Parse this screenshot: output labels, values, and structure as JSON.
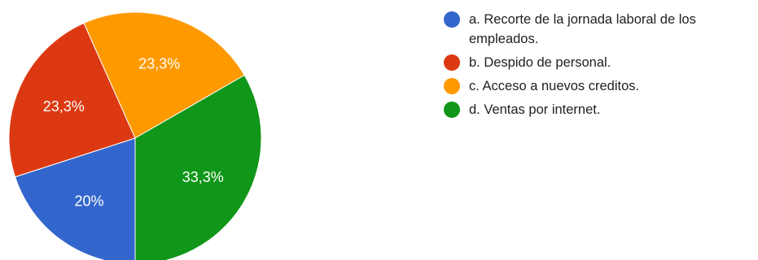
{
  "chart_data": {
    "type": "pie",
    "title": "",
    "legend_position": "right",
    "slices": [
      {
        "label": "a. Recorte de la jornada laboral de los empleados.",
        "value": 20.0,
        "display": "20%",
        "color": "#3366cc"
      },
      {
        "label": "b. Despido de personal.",
        "value": 23.3,
        "display": "23,3%",
        "color": "#dc3912"
      },
      {
        "label": "c. Acceso a nuevos creditos.",
        "value": 23.3,
        "display": "23,3%",
        "color": "#ff9900"
      },
      {
        "label": "d. Ventas por internet.",
        "value": 33.3,
        "display": "33,3%",
        "color": "#109618"
      }
    ]
  }
}
